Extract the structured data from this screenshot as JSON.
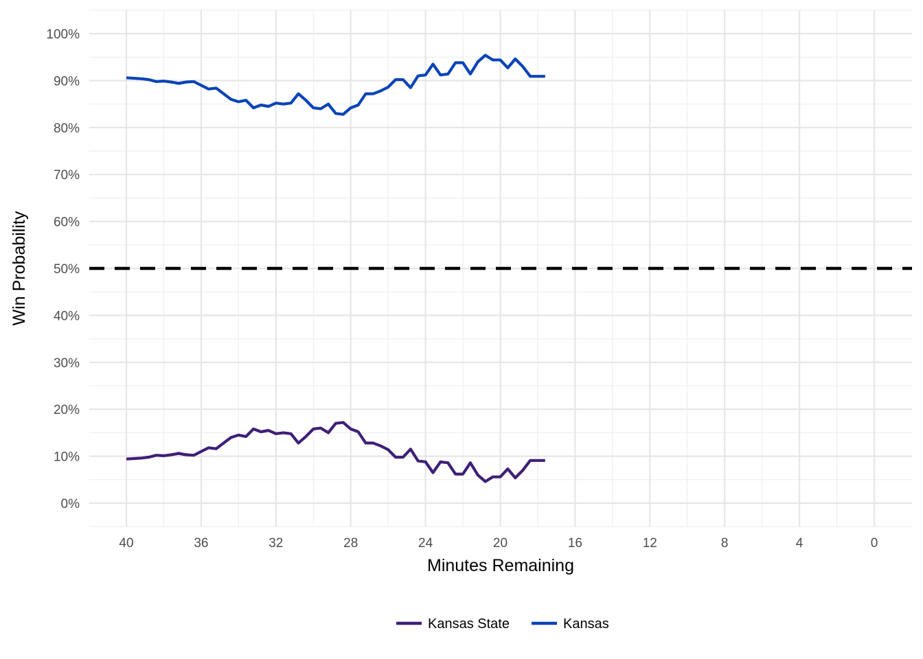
{
  "chart_data": {
    "type": "line",
    "xlabel": "Minutes Remaining",
    "ylabel": "Win Probability",
    "xlim": [
      40,
      0
    ],
    "ylim": [
      0,
      100
    ],
    "x_ticks": [
      40,
      36,
      32,
      28,
      24,
      20,
      16,
      12,
      8,
      4,
      0
    ],
    "x_tick_labels": [
      "40",
      "36",
      "32",
      "28",
      "24",
      "20",
      "16",
      "12",
      "8",
      "4",
      "0"
    ],
    "y_ticks": [
      0,
      10,
      20,
      30,
      40,
      50,
      60,
      70,
      80,
      90,
      100
    ],
    "y_tick_labels": [
      "0%",
      "10%",
      "20%",
      "30%",
      "40%",
      "50%",
      "60%",
      "70%",
      "80%",
      "90%",
      "100%"
    ],
    "grid": true,
    "legend_position": "bottom",
    "reference_line": {
      "y": 50,
      "style": "dashed",
      "color": "#000000"
    },
    "x": [
      40.0,
      39.2,
      38.8,
      38.4,
      38.0,
      37.6,
      37.2,
      36.8,
      36.4,
      36.0,
      35.6,
      35.2,
      34.8,
      34.4,
      34.0,
      33.6,
      33.2,
      32.8,
      32.4,
      32.0,
      31.6,
      31.2,
      30.8,
      30.4,
      30.0,
      29.6,
      29.2,
      28.8,
      28.4,
      28.0,
      27.6,
      27.2,
      26.8,
      26.4,
      26.0,
      25.6,
      25.2,
      24.8,
      24.4,
      24.0,
      23.6,
      23.2,
      22.8,
      22.4,
      22.0,
      21.6,
      21.2,
      20.8,
      20.4,
      20.0,
      19.6,
      19.2,
      18.8,
      18.4,
      18.0,
      17.6
    ],
    "series": [
      {
        "name": "Kansas State",
        "color": "#3f1f78",
        "values": [
          9.4,
          9.6,
          9.8,
          10.2,
          10.1,
          10.3,
          10.6,
          10.3,
          10.2,
          11.0,
          11.8,
          11.6,
          12.8,
          14.0,
          14.5,
          14.2,
          15.8,
          15.2,
          15.5,
          14.8,
          15.0,
          14.8,
          12.8,
          14.2,
          15.8,
          16.0,
          15.0,
          17.0,
          17.2,
          15.8,
          15.2,
          12.8,
          12.8,
          12.2,
          11.4,
          9.8,
          9.8,
          11.5,
          9.0,
          8.8,
          6.5,
          8.8,
          8.6,
          6.2,
          6.2,
          8.6,
          6.0,
          4.6,
          5.6,
          5.6,
          7.3,
          5.4,
          7.0,
          9.1,
          9.1,
          9.1
        ]
      },
      {
        "name": "Kansas",
        "color": "#0a44b8",
        "values": [
          90.6,
          90.4,
          90.2,
          89.8,
          89.9,
          89.7,
          89.4,
          89.7,
          89.8,
          89.0,
          88.2,
          88.4,
          87.2,
          86.0,
          85.5,
          85.8,
          84.2,
          84.8,
          84.5,
          85.2,
          85.0,
          85.2,
          87.2,
          85.8,
          84.2,
          84.0,
          85.0,
          83.0,
          82.8,
          84.2,
          84.8,
          87.2,
          87.2,
          87.8,
          88.6,
          90.2,
          90.2,
          88.5,
          91.0,
          91.2,
          93.5,
          91.2,
          91.4,
          93.8,
          93.8,
          91.4,
          94.0,
          95.4,
          94.4,
          94.4,
          92.7,
          94.6,
          93.0,
          90.9,
          90.9,
          90.9
        ]
      }
    ]
  }
}
